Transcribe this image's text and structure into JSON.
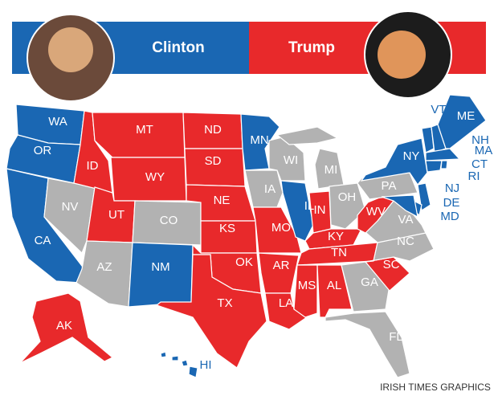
{
  "header": {
    "left": "Clinton",
    "right": "Trump"
  },
  "states": [
    {
      "label": "WA",
      "color": "#1a67b3"
    },
    {
      "label": "OR",
      "color": "#1a67b3"
    },
    {
      "label": "CA",
      "color": "#1a67b3"
    },
    {
      "label": "NV",
      "color": "#b2b2b2"
    },
    {
      "label": "ID",
      "color": "#e8292b"
    },
    {
      "label": "MT",
      "color": "#e8292b"
    },
    {
      "label": "WY",
      "color": "#e8292b"
    },
    {
      "label": "UT",
      "color": "#e8292b"
    },
    {
      "label": "AZ",
      "color": "#b2b2b2"
    },
    {
      "label": "CO",
      "color": "#b2b2b2"
    },
    {
      "label": "NM",
      "color": "#1a67b3"
    },
    {
      "label": "ND",
      "color": "#e8292b"
    },
    {
      "label": "SD",
      "color": "#e8292b"
    },
    {
      "label": "NE",
      "color": "#e8292b"
    },
    {
      "label": "KS",
      "color": "#e8292b"
    },
    {
      "label": "OK",
      "color": "#e8292b"
    },
    {
      "label": "TX",
      "color": "#e8292b"
    },
    {
      "label": "MN",
      "color": "#1a67b3"
    },
    {
      "label": "IA",
      "color": "#b2b2b2"
    },
    {
      "label": "MO",
      "color": "#e8292b"
    },
    {
      "label": "AR",
      "color": "#e8292b"
    },
    {
      "label": "LA",
      "color": "#e8292b"
    },
    {
      "label": "WI",
      "color": "#b2b2b2"
    },
    {
      "label": "IL",
      "color": "#1a67b3"
    },
    {
      "label": "MI",
      "color": "#b2b2b2"
    },
    {
      "label": "IN",
      "color": "#e8292b"
    },
    {
      "label": "OH",
      "color": "#b2b2b2"
    },
    {
      "label": "KY",
      "color": "#e8292b"
    },
    {
      "label": "TN",
      "color": "#e8292b"
    },
    {
      "label": "MS",
      "color": "#e8292b"
    },
    {
      "label": "AL",
      "color": "#e8292b"
    },
    {
      "label": "GA",
      "color": "#b2b2b2"
    },
    {
      "label": "FL",
      "color": "#b2b2b2"
    },
    {
      "label": "SC",
      "color": "#e8292b"
    },
    {
      "label": "NC",
      "color": "#b2b2b2"
    },
    {
      "label": "VA",
      "color": "#b2b2b2"
    },
    {
      "label": "WV",
      "color": "#e8292b"
    },
    {
      "label": "PA",
      "color": "#b2b2b2"
    },
    {
      "label": "NY",
      "color": "#1a67b3"
    },
    {
      "label": "NJ",
      "color": "#1a67b3"
    },
    {
      "label": "DE",
      "color": "#1a67b3"
    },
    {
      "label": "MD",
      "color": "#1a67b3"
    },
    {
      "label": "VT",
      "color": "#1a67b3"
    },
    {
      "label": "NH",
      "color": "#1a67b3"
    },
    {
      "label": "ME",
      "color": "#1a67b3"
    },
    {
      "label": "MA",
      "color": "#1a67b3"
    },
    {
      "label": "CT",
      "color": "#1a67b3"
    },
    {
      "label": "RI",
      "color": "#1a67b3"
    },
    {
      "label": "AK",
      "color": "#e8292b"
    },
    {
      "label": "HI",
      "color": "#1a67b3"
    }
  ],
  "credit": "IRISH TIMES GRAPHICS"
}
